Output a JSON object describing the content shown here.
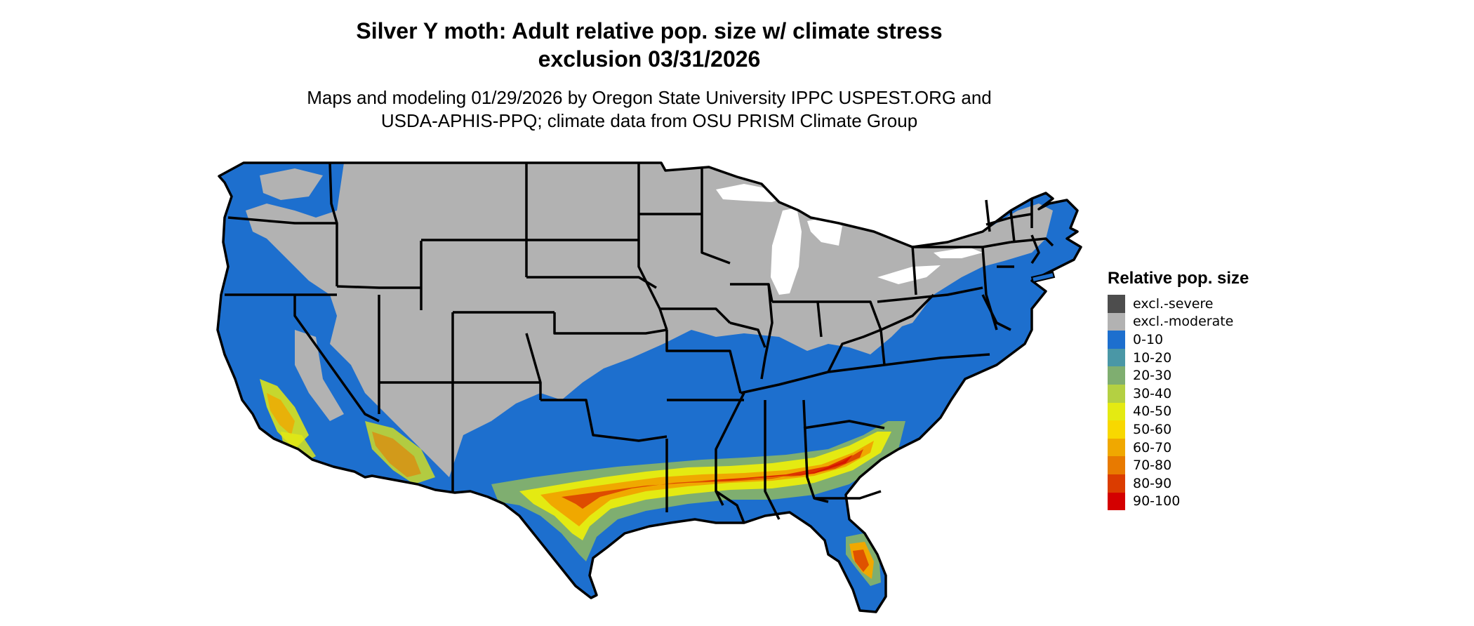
{
  "title_line1": "Silver Y moth: Adult relative pop. size w/ climate stress",
  "title_line2": "exclusion 03/31/2026",
  "subtitle_line1": "Maps and modeling 01/29/2026 by Oregon State University IPPC USPEST.ORG and",
  "subtitle_line2": "USDA-APHIS-PPQ; climate data from OSU PRISM Climate Group",
  "legend": {
    "title": "Relative pop. size",
    "items": [
      {
        "label": "excl.-severe",
        "color": "#4d4d4d"
      },
      {
        "label": "excl.-moderate",
        "color": "#b2b2b2"
      },
      {
        "label": "0-10",
        "color": "#1d6fce"
      },
      {
        "label": "10-20",
        "color": "#4a97a6"
      },
      {
        "label": "20-30",
        "color": "#7fae70"
      },
      {
        "label": "30-40",
        "color": "#b4d042"
      },
      {
        "label": "40-50",
        "color": "#e4ea12"
      },
      {
        "label": "50-60",
        "color": "#f8d800"
      },
      {
        "label": "60-70",
        "color": "#f0a800"
      },
      {
        "label": "70-80",
        "color": "#e87a00"
      },
      {
        "label": "80-90",
        "color": "#db3c00"
      },
      {
        "label": "90-100",
        "color": "#d40000"
      }
    ]
  }
}
